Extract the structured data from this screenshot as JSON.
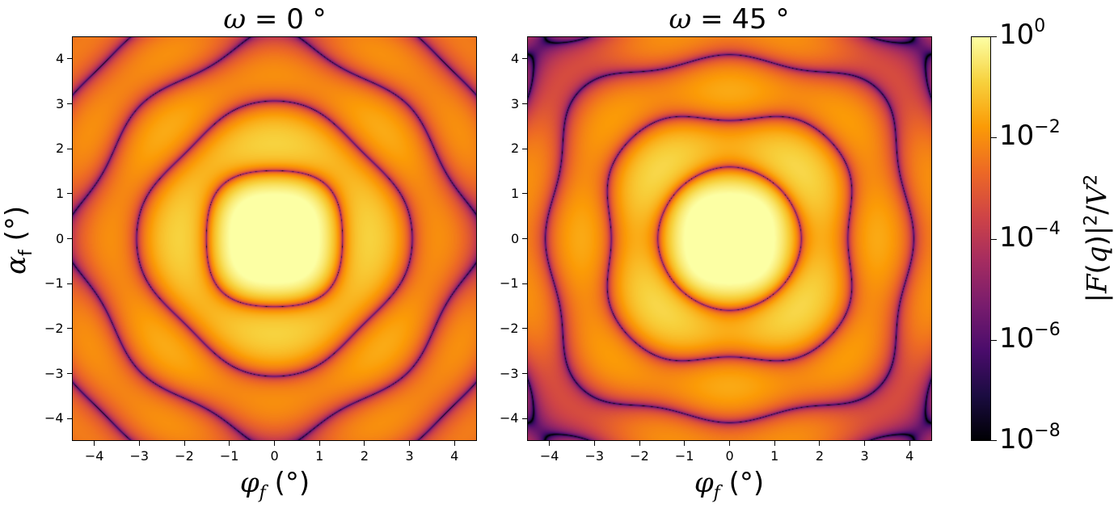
{
  "chart_data": [
    {
      "type": "heatmap",
      "title": "ω = 0 °",
      "title_parts": {
        "symbol": "ω",
        "equals": " = ",
        "value": "0",
        "unit": " °"
      },
      "xlabel": "φf (°)",
      "ylabel": "αf (°)",
      "xlim": [
        -4.5,
        4.5
      ],
      "ylim": [
        -4.5,
        4.5
      ],
      "omega_deg": 0,
      "xticks": [
        -4,
        -3,
        -2,
        -1,
        0,
        1,
        2,
        3,
        4
      ],
      "yticks": [
        -4,
        -3,
        -2,
        -1,
        0,
        1,
        2,
        3,
        4
      ],
      "xtick_labels": [
        "−4",
        "−3",
        "−2",
        "−1",
        "0",
        "1",
        "2",
        "3",
        "4"
      ],
      "ytick_labels": [
        "−4",
        "−3",
        "−2",
        "−1",
        "0",
        "1",
        "2",
        "3",
        "4"
      ],
      "colormap": "inferno",
      "log_scale": true
    },
    {
      "type": "heatmap",
      "title": "ω = 45 °",
      "title_parts": {
        "symbol": "ω",
        "equals": " = ",
        "value": "45",
        "unit": " °"
      },
      "xlabel": "φf (°)",
      "xlim": [
        -4.5,
        4.5
      ],
      "ylim": [
        -4.5,
        4.5
      ],
      "omega_deg": 45,
      "xticks": [
        -4,
        -3,
        -2,
        -1,
        0,
        1,
        2,
        3,
        4
      ],
      "yticks": [
        -4,
        -3,
        -2,
        -1,
        0,
        1,
        2,
        3,
        4
      ],
      "xtick_labels": [
        "−4",
        "−3",
        "−2",
        "−1",
        "0",
        "1",
        "2",
        "3",
        "4"
      ],
      "ytick_labels": [
        "−4",
        "−3",
        "−2",
        "−1",
        "0",
        "1",
        "2",
        "3",
        "4"
      ],
      "colormap": "inferno",
      "log_scale": true
    }
  ],
  "colorbar": {
    "label": "|F(q)|²/V²",
    "scale": "log",
    "range": [
      1e-08,
      1
    ],
    "ticks": [
      {
        "base": "10",
        "exp": "0",
        "value": 1
      },
      {
        "base": "10",
        "exp": "−2",
        "value": 0.01
      },
      {
        "base": "10",
        "exp": "−4",
        "value": 0.0001
      },
      {
        "base": "10",
        "exp": "−6",
        "value": 1e-06
      },
      {
        "base": "10",
        "exp": "−8",
        "value": 1e-08
      }
    ]
  }
}
